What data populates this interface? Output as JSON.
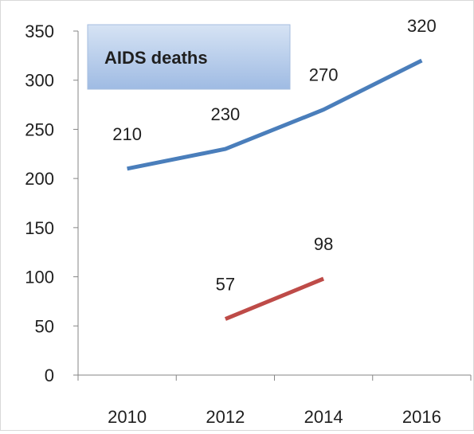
{
  "chart_data": {
    "type": "line",
    "title": "AIDS deaths",
    "x": [
      "2010",
      "2012",
      "2014",
      "2016"
    ],
    "series": [
      {
        "color": "#4a7ebb",
        "values": [
          210,
          230,
          270,
          320
        ]
      },
      {
        "color": "#be4b48",
        "values": [
          null,
          57,
          98,
          null
        ]
      }
    ],
    "yticks": [
      "0",
      "50",
      "100",
      "150",
      "200",
      "250",
      "300",
      "350"
    ],
    "ylim": [
      0,
      350
    ],
    "grid": false,
    "legend": "none",
    "title_box_color": "#b9cde9"
  }
}
